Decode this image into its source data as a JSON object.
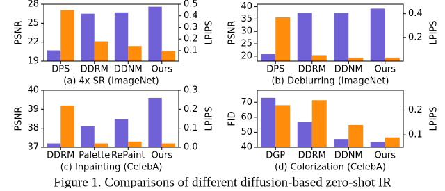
{
  "chart_data": [
    {
      "type": "bar",
      "xlabel": "(a) 4x SR (ImageNet)",
      "ylabel": "PSNR",
      "y2label": "LPIPS",
      "categories": [
        "DPS",
        "DDRM",
        "DDNM",
        "Ours"
      ],
      "series": [
        {
          "color": "#7161d6",
          "values": [
            20.7,
            26.5,
            26.7,
            27.6
          ]
        },
        {
          "color": "#ff8c0a",
          "axis": "y2",
          "values": [
            0.45,
            0.18,
            0.14,
            0.1
          ]
        }
      ],
      "ylim": [
        19,
        28
      ],
      "yticks": [
        19,
        22,
        25,
        28
      ],
      "y2lim": [
        0.01,
        0.5
      ],
      "y2ticks": [
        0.1,
        0.2,
        0.3,
        0.4,
        0.5
      ]
    },
    {
      "type": "bar",
      "xlabel": "(b) Deblurring (ImageNet)",
      "ylabel": "PSNR",
      "y2label": "LPIPS",
      "categories": [
        "DPS",
        "DDRM",
        "DDNM",
        "Ours"
      ],
      "series": [
        {
          "color": "#7161d6",
          "values": [
            20.8,
            37.5,
            37.5,
            39.2
          ]
        },
        {
          "color": "#ff8c0a",
          "axis": "y2",
          "values": [
            0.37,
            0.05,
            0.03,
            0.03
          ]
        }
      ],
      "ylim": [
        18,
        41
      ],
      "yticks": [
        20,
        25,
        30,
        35,
        40
      ],
      "y2lim": [
        0,
        0.48
      ],
      "y2ticks": [
        0.2,
        0.4
      ]
    },
    {
      "type": "bar",
      "xlabel": "(c) Inpainting (CelebA)",
      "ylabel": "PSNR",
      "y2label": "LPIPS",
      "categories": [
        "DDRM",
        "Palette",
        "RePaint",
        "Ours"
      ],
      "series": [
        {
          "color": "#7161d6",
          "values": [
            37.2,
            38.1,
            38.5,
            39.6
          ]
        },
        {
          "color": "#ff8c0a",
          "axis": "y2",
          "values": [
            0.22,
            0.02,
            0.03,
            0.02
          ]
        }
      ],
      "ylim": [
        37,
        40
      ],
      "yticks": [
        37,
        38,
        39,
        40
      ],
      "y2lim": [
        0,
        0.3
      ],
      "y2ticks": [
        {
          "value": 0,
          "label": "0.0"
        },
        0.1,
        0.2,
        0.3
      ]
    },
    {
      "type": "bar",
      "xlabel": "(d) Colorization (CelebA)",
      "ylabel": "FID",
      "y2label": "LPIPS",
      "categories": [
        "DGP",
        "DDRM",
        "DDNM",
        "Ours"
      ],
      "series": [
        {
          "color": "#7161d6",
          "values": [
            73,
            57,
            45.5,
            43.5
          ]
        },
        {
          "color": "#ff8c0a",
          "axis": "y2",
          "values": [
            0.22,
            0.24,
            0.14,
            0.09
          ]
        }
      ],
      "ylim": [
        40,
        78
      ],
      "yticks": [
        40,
        50,
        60,
        70
      ],
      "y2lim": [
        0.05,
        0.28
      ],
      "y2ticks": [
        0.1,
        0.2
      ]
    }
  ],
  "caption": "Figure 1. Comparisons of different diffusion-based zero-shot IR"
}
